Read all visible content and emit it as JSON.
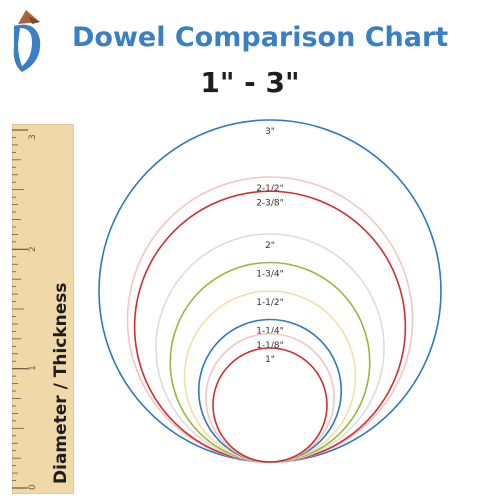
{
  "header": {
    "title": "Dowel Comparison Chart",
    "subtitle": "1\" - 3\""
  },
  "ruler": {
    "label": "Diameter / Thickness",
    "numbers": [
      "3",
      "2",
      "1",
      "0"
    ]
  },
  "colors": {
    "title": "#3a7fc4",
    "ruler_wood": "#f0d8a8",
    "ruler_ticks": "#6b5a3e"
  },
  "dowels": [
    {
      "label": "3\"",
      "diameter_in": 3,
      "color": "#2f78bd"
    },
    {
      "label": "2-1/2\"",
      "diameter_in": 2.5,
      "color": "#f3c6c6"
    },
    {
      "label": "2-3/8\"",
      "diameter_in": 2.375,
      "color": "#d12f2f"
    },
    {
      "label": "2\"",
      "diameter_in": 2,
      "color": "#dcdcdc"
    },
    {
      "label": "1-3/4\"",
      "diameter_in": 1.75,
      "color": "#9bb63f"
    },
    {
      "label": "1-1/2\"",
      "diameter_in": 1.5,
      "color": "#f3dfa6"
    },
    {
      "label": "1-1/4\"",
      "diameter_in": 1.25,
      "color": "#2f78bd"
    },
    {
      "label": "1-1/8\"",
      "diameter_in": 1.125,
      "color": "#f3c6c6"
    },
    {
      "label": "1\"",
      "diameter_in": 1,
      "color": "#d12f2f"
    }
  ]
}
